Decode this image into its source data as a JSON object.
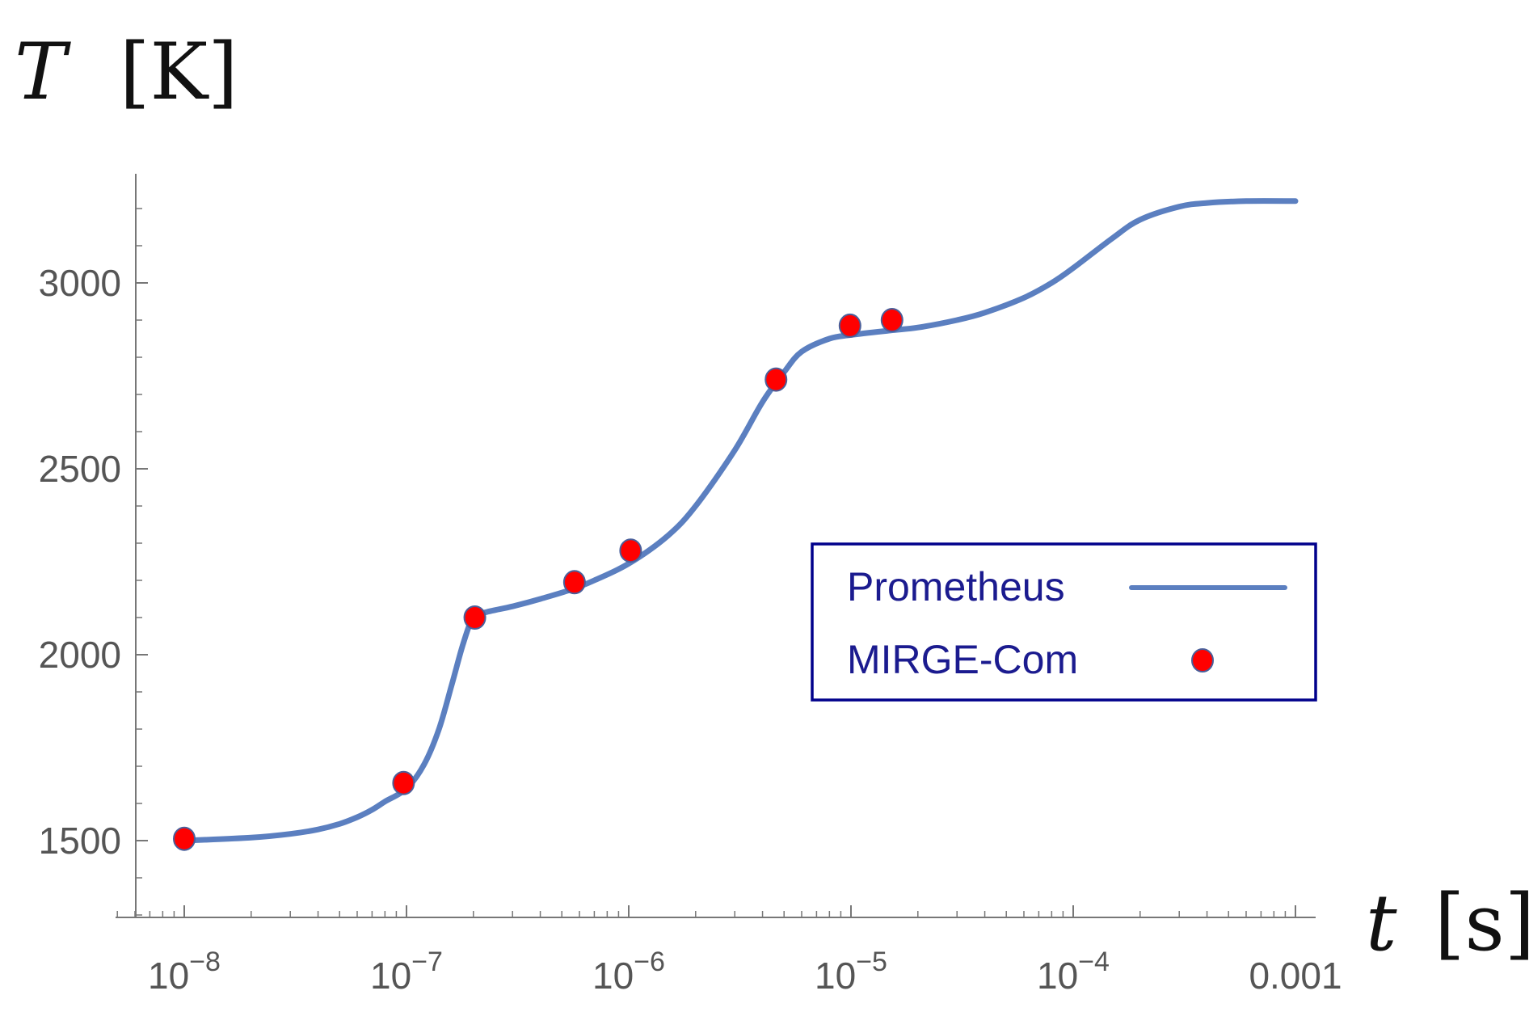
{
  "chart_data": {
    "type": "line",
    "x_scale": "log",
    "xlim": [
      5e-09,
      0.0011
    ],
    "ylim": [
      1300,
      3300
    ],
    "ylabel_var": "T",
    "ylabel_unit": "[K]",
    "xlabel_var": "t",
    "xlabel_unit": "[s]",
    "yticks": [
      {
        "value": 1500,
        "label": "1500"
      },
      {
        "value": 2000,
        "label": "2000"
      },
      {
        "value": 2500,
        "label": "2500"
      },
      {
        "value": 3000,
        "label": "3000"
      }
    ],
    "xticks": [
      {
        "value": 1e-08,
        "base": "10",
        "exp": "−8"
      },
      {
        "value": 1e-07,
        "base": "10",
        "exp": "−7"
      },
      {
        "value": 1e-06,
        "base": "10",
        "exp": "−6"
      },
      {
        "value": 1e-05,
        "base": "10",
        "exp": "−5"
      },
      {
        "value": 0.0001,
        "base": "10",
        "exp": "−4"
      },
      {
        "value": 0.001,
        "plain": "0.001"
      }
    ],
    "series": [
      {
        "name": "Prometheus",
        "kind": "line",
        "color": "#5b7fc0",
        "x": [
          1e-08,
          2e-08,
          3e-08,
          4e-08,
          5e-08,
          6e-08,
          7e-08,
          8e-08,
          1e-07,
          1.2e-07,
          1.4e-07,
          1.6e-07,
          1.8e-07,
          2e-07,
          2.3e-07,
          3e-07,
          4e-07,
          5.5e-07,
          7e-07,
          1e-06,
          1.5e-06,
          2e-06,
          3e-06,
          4e-06,
          5e-06,
          6e-06,
          8e-06,
          1e-05,
          1.5e-05,
          2e-05,
          3e-05,
          4e-05,
          6e-05,
          8e-05,
          0.0001,
          0.00015,
          0.0002,
          0.0003,
          0.0004,
          0.0006,
          0.001
        ],
        "y": [
          1500,
          1508,
          1518,
          1530,
          1545,
          1563,
          1583,
          1605,
          1640,
          1705,
          1800,
          1920,
          2030,
          2100,
          2115,
          2130,
          2150,
          2175,
          2200,
          2245,
          2320,
          2400,
          2550,
          2680,
          2760,
          2815,
          2850,
          2860,
          2872,
          2880,
          2900,
          2920,
          2960,
          3000,
          3040,
          3120,
          3170,
          3205,
          3215,
          3220,
          3220
        ]
      },
      {
        "name": "MIRGE-Com",
        "kind": "scatter",
        "color": "#ff0000",
        "x": [
          1e-08,
          9.7e-08,
          2.03e-07,
          5.7e-07,
          1.02e-06,
          4.6e-06,
          9.9e-06,
          1.53e-05
        ],
        "y": [
          1505,
          1655,
          2100,
          2195,
          2280,
          2740,
          2885,
          2900
        ]
      }
    ],
    "legend": {
      "position": "center-right",
      "items": [
        {
          "label": "Prometheus",
          "marker": "line"
        },
        {
          "label": "MIRGE-Com",
          "marker": "dot"
        }
      ],
      "border_color": "#00008b"
    }
  }
}
